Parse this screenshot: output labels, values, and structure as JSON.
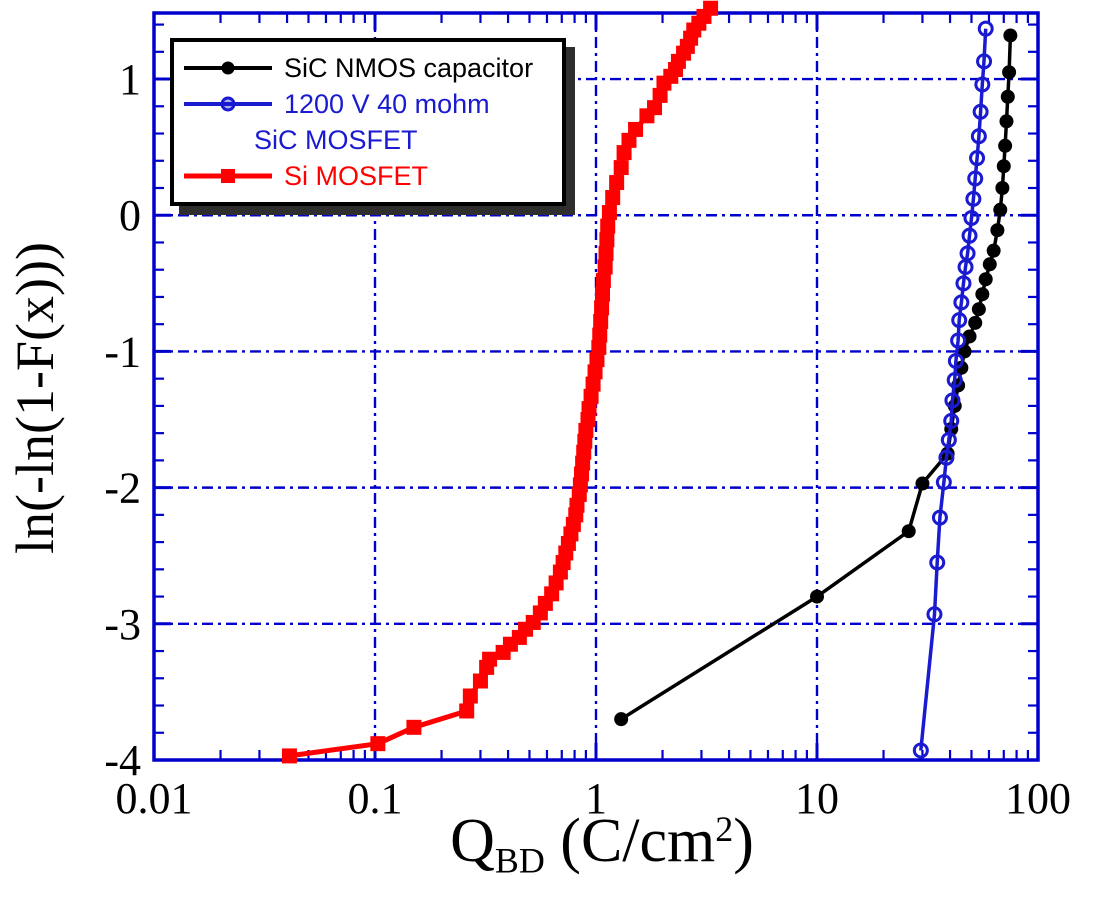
{
  "figure": {
    "background": "#ffffff"
  },
  "colors": {
    "axis": "#0000cc",
    "grid": "#0000cc",
    "tick_text": "#000000"
  },
  "axes": {
    "x": {
      "scale": "log",
      "min": 0.01,
      "max": 100,
      "tick_values": [
        0.01,
        0.1,
        1,
        10,
        100
      ],
      "tick_labels": [
        "0.01",
        "0.1",
        "1",
        "10",
        "100"
      ],
      "grid_values": [
        0.1,
        1,
        10
      ],
      "title_main": "Q",
      "title_sub": "BD",
      "title_mid": " (C/cm",
      "title_sup": "2",
      "title_end": ")"
    },
    "y": {
      "scale": "linear",
      "min": -4,
      "max": 1.485,
      "tick_values": [
        1,
        0,
        -1,
        -2,
        -3,
        -4
      ],
      "tick_labels": [
        "1",
        "0",
        "-1",
        "-2",
        "-3",
        "-4"
      ],
      "minor_step": 0.2,
      "grid_values": [
        1,
        0,
        -1,
        -2,
        -3
      ],
      "title": "ln(-ln(1-F(x)))"
    }
  },
  "legend": {
    "entries": [
      {
        "label": "SiC NMOS capacitor",
        "color": "#000000",
        "marker": "filled-circle"
      },
      {
        "label": "1200 V 40 mohm",
        "label2": "SiC MOSFET",
        "color": "#1a1ad1",
        "marker": "open-circle"
      },
      {
        "label": "Si MOSFET",
        "color": "#ff0000",
        "marker": "filled-square"
      }
    ]
  },
  "chart_data": {
    "type": "line",
    "x_scale": "log",
    "xlim": [
      0.01,
      100
    ],
    "ylim": [
      -4,
      1.485
    ],
    "xlabel": "Q_BD (C/cm^2)",
    "ylabel": "ln(-ln(1-F(x)))",
    "grid": true,
    "legend_position": "upper-left",
    "series": [
      {
        "name": "SiC NMOS capacitor",
        "color": "#000000",
        "marker": "filled-circle",
        "points": [
          [
            1.3,
            -3.7
          ],
          [
            10,
            -2.8
          ],
          [
            26,
            -2.32
          ],
          [
            30,
            -1.97
          ],
          [
            39,
            -1.75
          ],
          [
            40.5,
            -1.57
          ],
          [
            42,
            -1.4
          ],
          [
            43.5,
            -1.25
          ],
          [
            45,
            -1.12
          ],
          [
            46.5,
            -1.0
          ],
          [
            49,
            -0.89
          ],
          [
            52,
            -0.79
          ],
          [
            54,
            -0.69
          ],
          [
            56,
            -0.58
          ],
          [
            58,
            -0.47
          ],
          [
            60.5,
            -0.36
          ],
          [
            63,
            -0.26
          ],
          [
            65.5,
            -0.11
          ],
          [
            67.5,
            0.04
          ],
          [
            69,
            0.2
          ],
          [
            70,
            0.36
          ],
          [
            71,
            0.51
          ],
          [
            72,
            0.69
          ],
          [
            73,
            0.87
          ],
          [
            74,
            1.05
          ],
          [
            75,
            1.32
          ]
        ]
      },
      {
        "name": "1200 V 40 mohm SiC MOSFET",
        "color": "#1a1ad1",
        "marker": "open-circle",
        "points": [
          [
            29.5,
            -3.93
          ],
          [
            34,
            -2.93
          ],
          [
            35,
            -2.55
          ],
          [
            36,
            -2.22
          ],
          [
            37.5,
            -1.96
          ],
          [
            38.5,
            -1.78
          ],
          [
            39.5,
            -1.65
          ],
          [
            40.5,
            -1.51
          ],
          [
            41,
            -1.36
          ],
          [
            42,
            -1.21
          ],
          [
            42.5,
            -1.07
          ],
          [
            43.5,
            -0.92
          ],
          [
            44,
            -0.77
          ],
          [
            45,
            -0.64
          ],
          [
            46,
            -0.5
          ],
          [
            47,
            -0.38
          ],
          [
            48,
            -0.28
          ],
          [
            49,
            -0.15
          ],
          [
            50,
            -0.02
          ],
          [
            51,
            0.12
          ],
          [
            52,
            0.27
          ],
          [
            53,
            0.42
          ],
          [
            54,
            0.58
          ],
          [
            55,
            0.76
          ],
          [
            56,
            0.96
          ],
          [
            57,
            1.13
          ],
          [
            58,
            1.37
          ]
        ]
      },
      {
        "name": "Si MOSFET",
        "color": "#ff0000",
        "marker": "filled-square",
        "points": [
          [
            0.041,
            -3.97
          ],
          [
            0.103,
            -3.88
          ],
          [
            0.15,
            -3.76
          ],
          [
            0.26,
            -3.64
          ],
          [
            0.27,
            -3.53
          ],
          [
            0.3,
            -3.42
          ],
          [
            0.32,
            -3.32
          ],
          [
            0.33,
            -3.26
          ],
          [
            0.38,
            -3.21
          ],
          [
            0.41,
            -3.15
          ],
          [
            0.45,
            -3.1
          ],
          [
            0.48,
            -3.04
          ],
          [
            0.52,
            -2.99
          ],
          [
            0.56,
            -2.92
          ],
          [
            0.59,
            -2.85
          ],
          [
            0.63,
            -2.78
          ],
          [
            0.66,
            -2.7
          ],
          [
            0.69,
            -2.62
          ],
          [
            0.71,
            -2.55
          ],
          [
            0.73,
            -2.48
          ],
          [
            0.75,
            -2.41
          ],
          [
            0.77,
            -2.34
          ],
          [
            0.79,
            -2.27
          ],
          [
            0.81,
            -2.2
          ],
          [
            0.82,
            -2.13
          ],
          [
            0.84,
            -2.05
          ],
          [
            0.85,
            -1.98
          ],
          [
            0.86,
            -1.9
          ],
          [
            0.87,
            -1.82
          ],
          [
            0.88,
            -1.74
          ],
          [
            0.89,
            -1.66
          ],
          [
            0.9,
            -1.58
          ],
          [
            0.92,
            -1.5
          ],
          [
            0.93,
            -1.42
          ],
          [
            0.95,
            -1.33
          ],
          [
            0.97,
            -1.24
          ],
          [
            0.99,
            -1.15
          ],
          [
            1.01,
            -1.06
          ],
          [
            1.03,
            -0.97
          ],
          [
            1.04,
            -0.88
          ],
          [
            1.05,
            -0.78
          ],
          [
            1.06,
            -0.68
          ],
          [
            1.07,
            -0.58
          ],
          [
            1.08,
            -0.48
          ],
          [
            1.1,
            -0.38
          ],
          [
            1.11,
            -0.28
          ],
          [
            1.12,
            -0.18
          ],
          [
            1.13,
            -0.08
          ],
          [
            1.15,
            0.02
          ],
          [
            1.19,
            0.13
          ],
          [
            1.24,
            0.24
          ],
          [
            1.3,
            0.35
          ],
          [
            1.34,
            0.46
          ],
          [
            1.41,
            0.55
          ],
          [
            1.51,
            0.63
          ],
          [
            1.7,
            0.73
          ],
          [
            1.84,
            0.79
          ],
          [
            1.95,
            0.88
          ],
          [
            2.03,
            0.97
          ],
          [
            2.18,
            1.02
          ],
          [
            2.29,
            1.07
          ],
          [
            2.36,
            1.13
          ],
          [
            2.49,
            1.19
          ],
          [
            2.59,
            1.24
          ],
          [
            2.68,
            1.3
          ],
          [
            2.77,
            1.36
          ],
          [
            2.92,
            1.41
          ],
          [
            3.08,
            1.46
          ],
          [
            3.3,
            1.52
          ]
        ]
      }
    ]
  }
}
